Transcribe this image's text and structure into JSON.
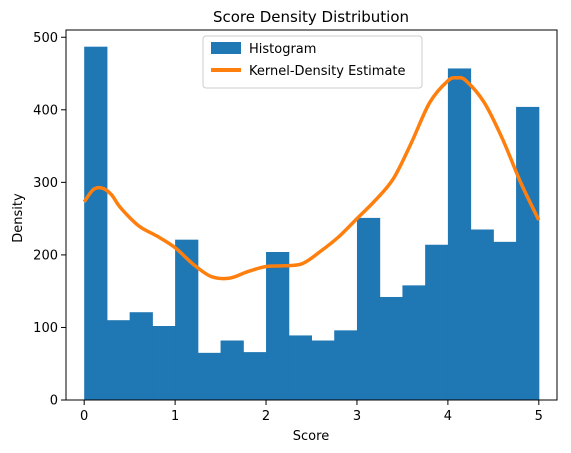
{
  "chart_data": {
    "type": "bar",
    "title": "Score Density Distribution",
    "xlabel": "Score",
    "ylabel": "Density",
    "xlim": [
      -0.2,
      5.2
    ],
    "ylim": [
      0,
      510
    ],
    "xticks": [
      0,
      1,
      2,
      3,
      4,
      5
    ],
    "yticks": [
      0,
      100,
      200,
      300,
      400,
      500
    ],
    "grid": false,
    "legend_position": "top-center",
    "bin_edges": [
      0,
      0.25,
      0.5,
      0.75,
      1.0,
      1.25,
      1.5,
      1.75,
      2.0,
      2.25,
      2.5,
      2.75,
      3.0,
      3.25,
      3.5,
      3.75,
      4.0,
      4.25,
      4.5,
      4.75,
      5.0
    ],
    "series": [
      {
        "name": "Histogram",
        "type": "bar",
        "color": "#1f77b4",
        "values": [
          487,
          110,
          121,
          102,
          221,
          65,
          82,
          66,
          204,
          89,
          82,
          96,
          251,
          142,
          158,
          214,
          457,
          235,
          218,
          404
        ]
      },
      {
        "name": "Kernel-Density Estimate",
        "type": "line",
        "color": "#ff7f0e",
        "x": [
          0,
          0.1,
          0.2,
          0.3,
          0.4,
          0.6,
          0.8,
          1.0,
          1.2,
          1.4,
          1.6,
          1.8,
          2.0,
          2.2,
          2.4,
          2.6,
          2.8,
          3.0,
          3.2,
          3.4,
          3.6,
          3.8,
          4.0,
          4.1,
          4.2,
          4.4,
          4.6,
          4.8,
          5.0
        ],
        "values": [
          273,
          290,
          292,
          283,
          265,
          240,
          226,
          210,
          187,
          170,
          168,
          177,
          184,
          185,
          188,
          205,
          225,
          250,
          275,
          305,
          355,
          410,
          440,
          444,
          440,
          410,
          360,
          300,
          248
        ]
      }
    ]
  }
}
